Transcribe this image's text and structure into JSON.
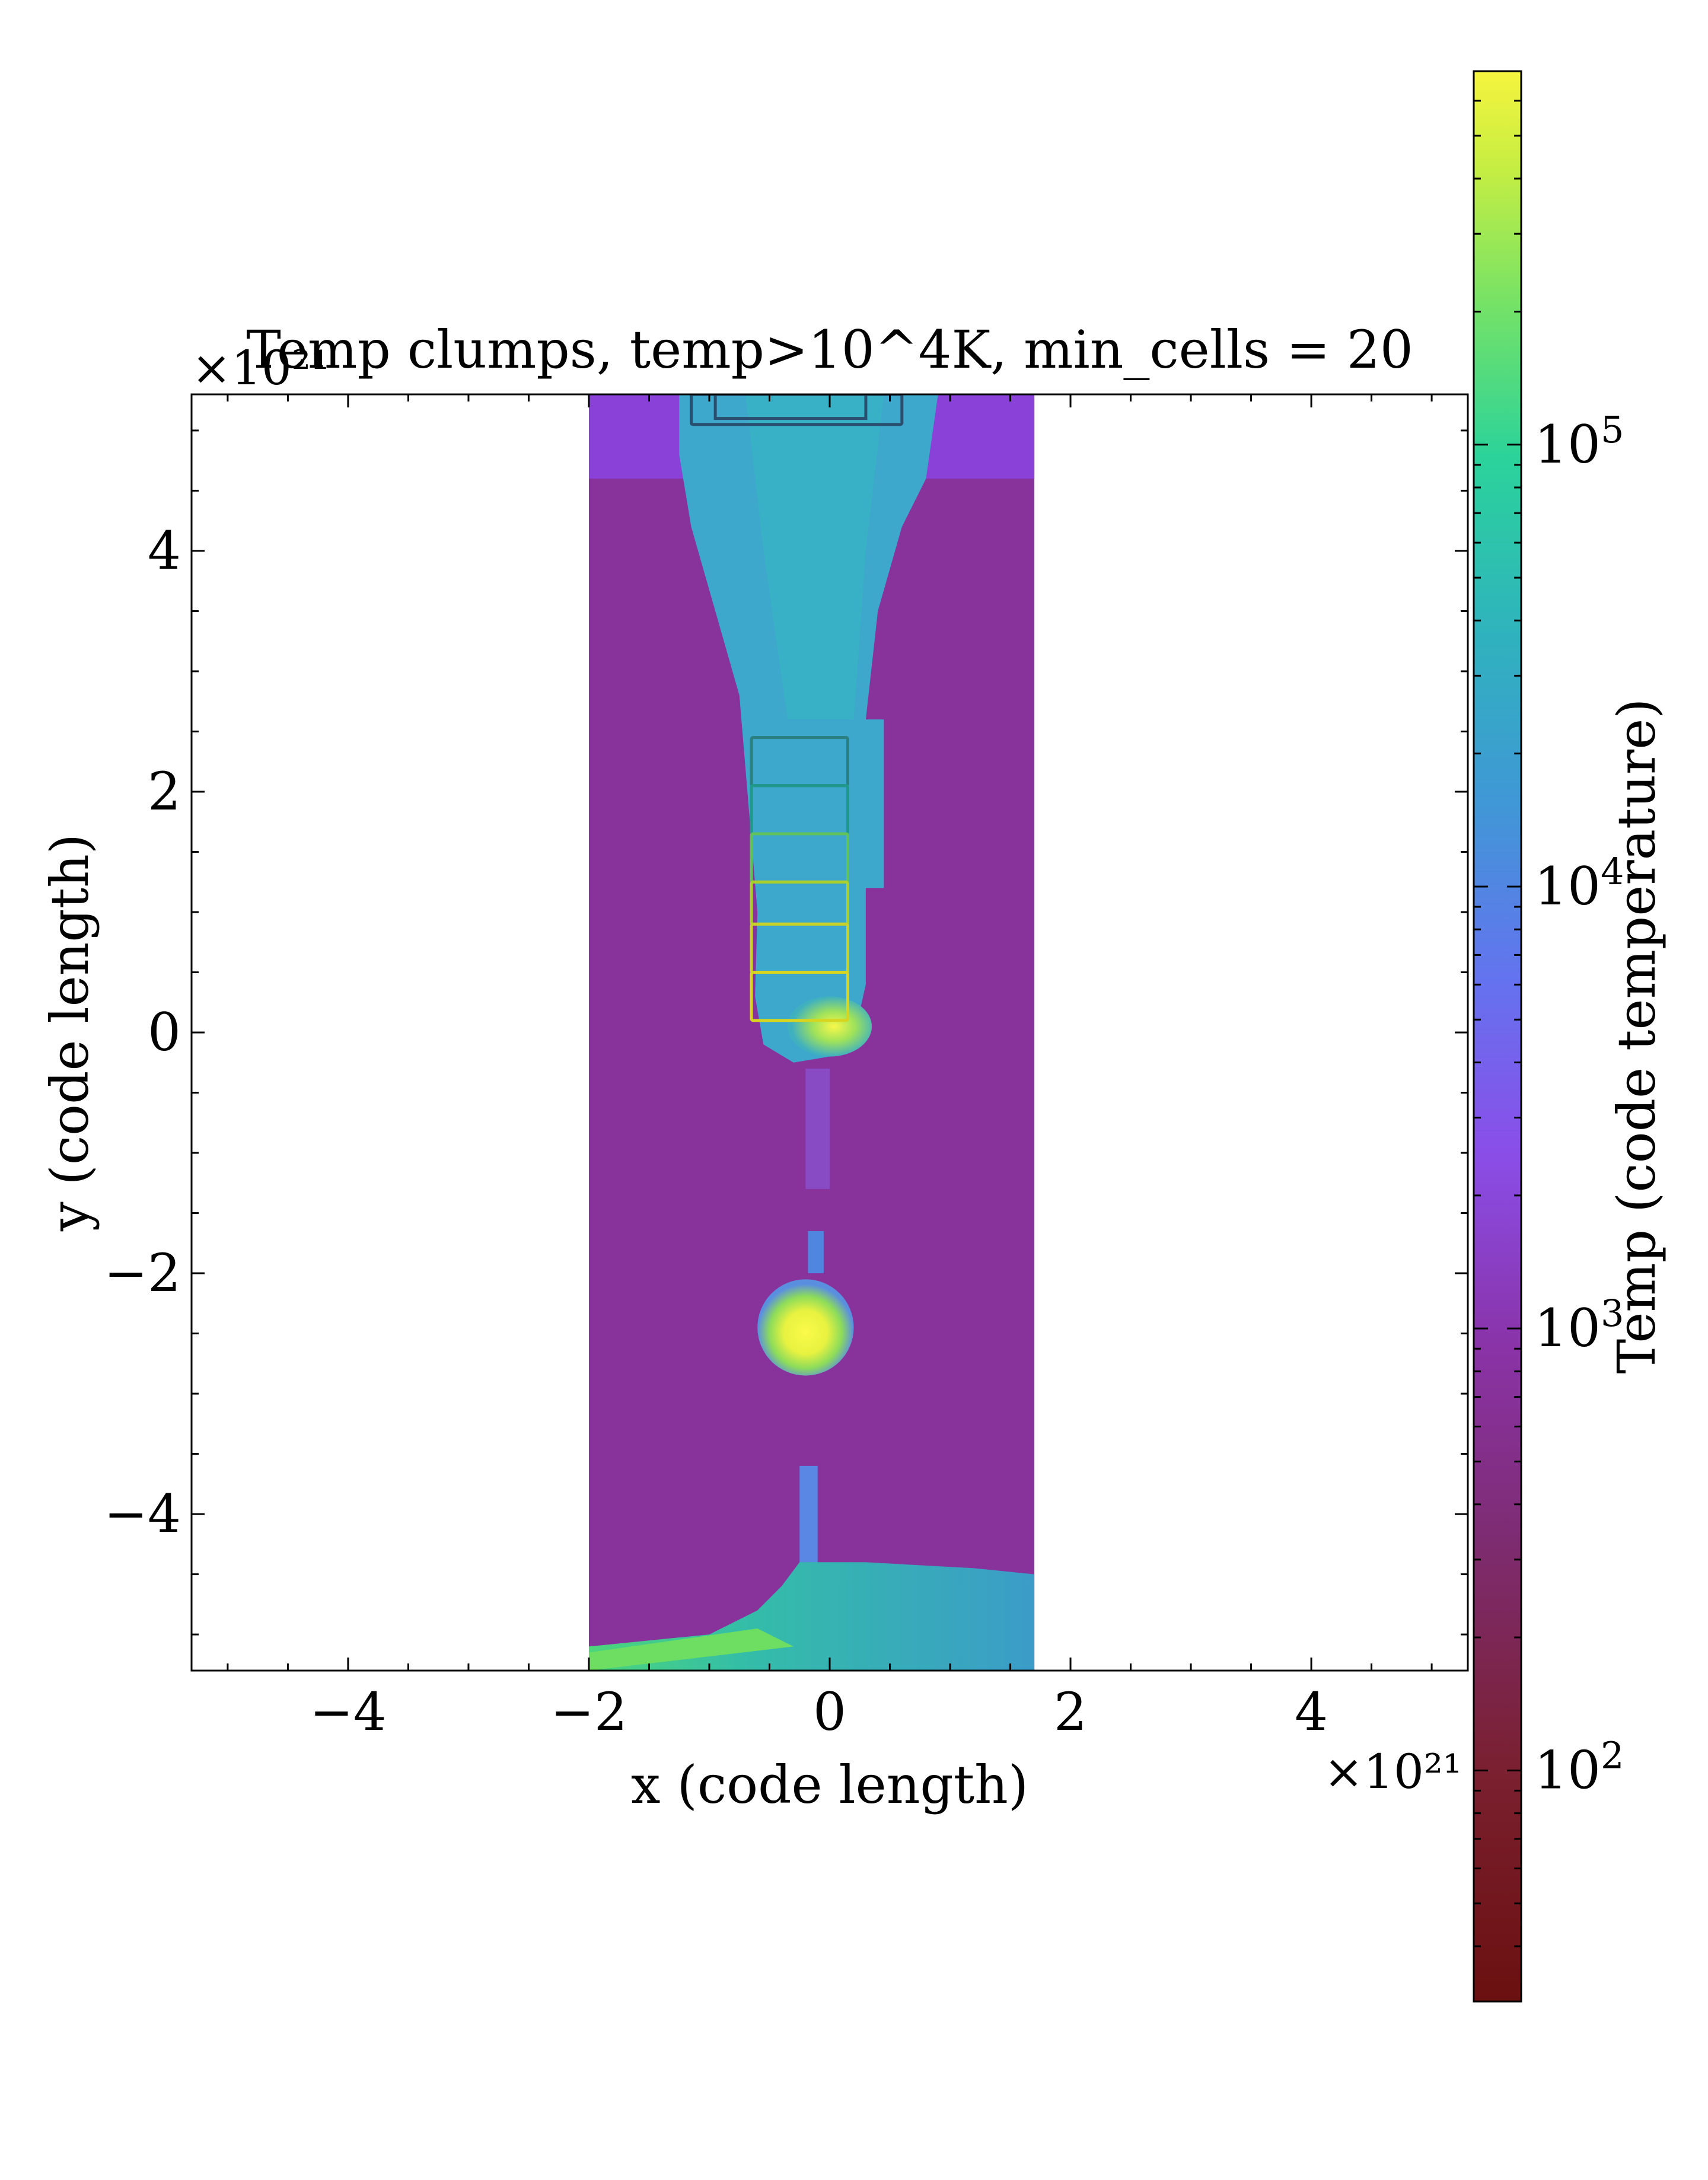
{
  "chart_data": {
    "type": "heatmap",
    "title": "Temp clumps, temp>10^4K, min_cells = 20",
    "xlabel": "x  (code length)",
    "ylabel": "y  (code length)",
    "x_multiplier": "×10²¹",
    "y_multiplier": "×10²¹",
    "xlim": [
      -5.3,
      5.3
    ],
    "ylim": [
      -5.3,
      5.3
    ],
    "x_ticks": [
      {
        "value": -4,
        "label": "−4"
      },
      {
        "value": -2,
        "label": "−2"
      },
      {
        "value": 0,
        "label": "0"
      },
      {
        "value": 2,
        "label": "2"
      },
      {
        "value": 4,
        "label": "4"
      }
    ],
    "y_ticks": [
      {
        "value": 4,
        "label": "4"
      },
      {
        "value": 2,
        "label": "2"
      },
      {
        "value": 0,
        "label": "0"
      },
      {
        "value": -2,
        "label": "−2"
      },
      {
        "value": -4,
        "label": "−4"
      }
    ],
    "colorbar": {
      "label": "Temp  (code temperature)",
      "scale": "log",
      "colormap": "plasma-like (dark red → purple → blue → teal → green → yellow)",
      "range": [
        30,
        700000
      ],
      "ticks": [
        {
          "value": 100,
          "base": "10",
          "exp": "2"
        },
        {
          "value": 1000,
          "base": "10",
          "exp": "3"
        },
        {
          "value": 10000,
          "base": "10",
          "exp": "4"
        },
        {
          "value": 100000,
          "base": "10",
          "exp": "5"
        }
      ]
    },
    "data_slab": {
      "x": [
        -2.0,
        1.7
      ],
      "y": [
        -5.3,
        5.3
      ],
      "background_temp": 300
    },
    "regions": [
      {
        "name": "upper hot outflow",
        "temp": 15000
      },
      {
        "name": "central hot knot",
        "x": 0.0,
        "y": 0.0,
        "temp": 300000
      },
      {
        "name": "lower hot blob",
        "x": -0.2,
        "y": -2.5,
        "temp": 400000
      },
      {
        "name": "bottom warm region",
        "temp": 12000
      }
    ],
    "clump_boxes": [
      {
        "x": [
          -0.65,
          0.15
        ],
        "y": [
          2.05,
          2.45
        ],
        "color": "#2b7f7e"
      },
      {
        "x": [
          -0.65,
          0.15
        ],
        "y": [
          1.65,
          2.05
        ],
        "color": "#1f9a8a"
      },
      {
        "x": [
          -0.65,
          0.15
        ],
        "y": [
          1.25,
          1.65
        ],
        "color": "#5fc25a"
      },
      {
        "x": [
          -0.65,
          0.15
        ],
        "y": [
          0.9,
          1.25
        ],
        "color": "#a9cf2c"
      },
      {
        "x": [
          -0.65,
          0.15
        ],
        "y": [
          0.5,
          0.9
        ],
        "color": "#c8d12a"
      },
      {
        "x": [
          -0.65,
          0.15
        ],
        "y": [
          0.1,
          0.5
        ],
        "color": "#d8d521"
      },
      {
        "x": [
          -1.15,
          0.6
        ],
        "y": [
          5.05,
          5.3
        ],
        "color": "#2a4f6e"
      }
    ]
  }
}
